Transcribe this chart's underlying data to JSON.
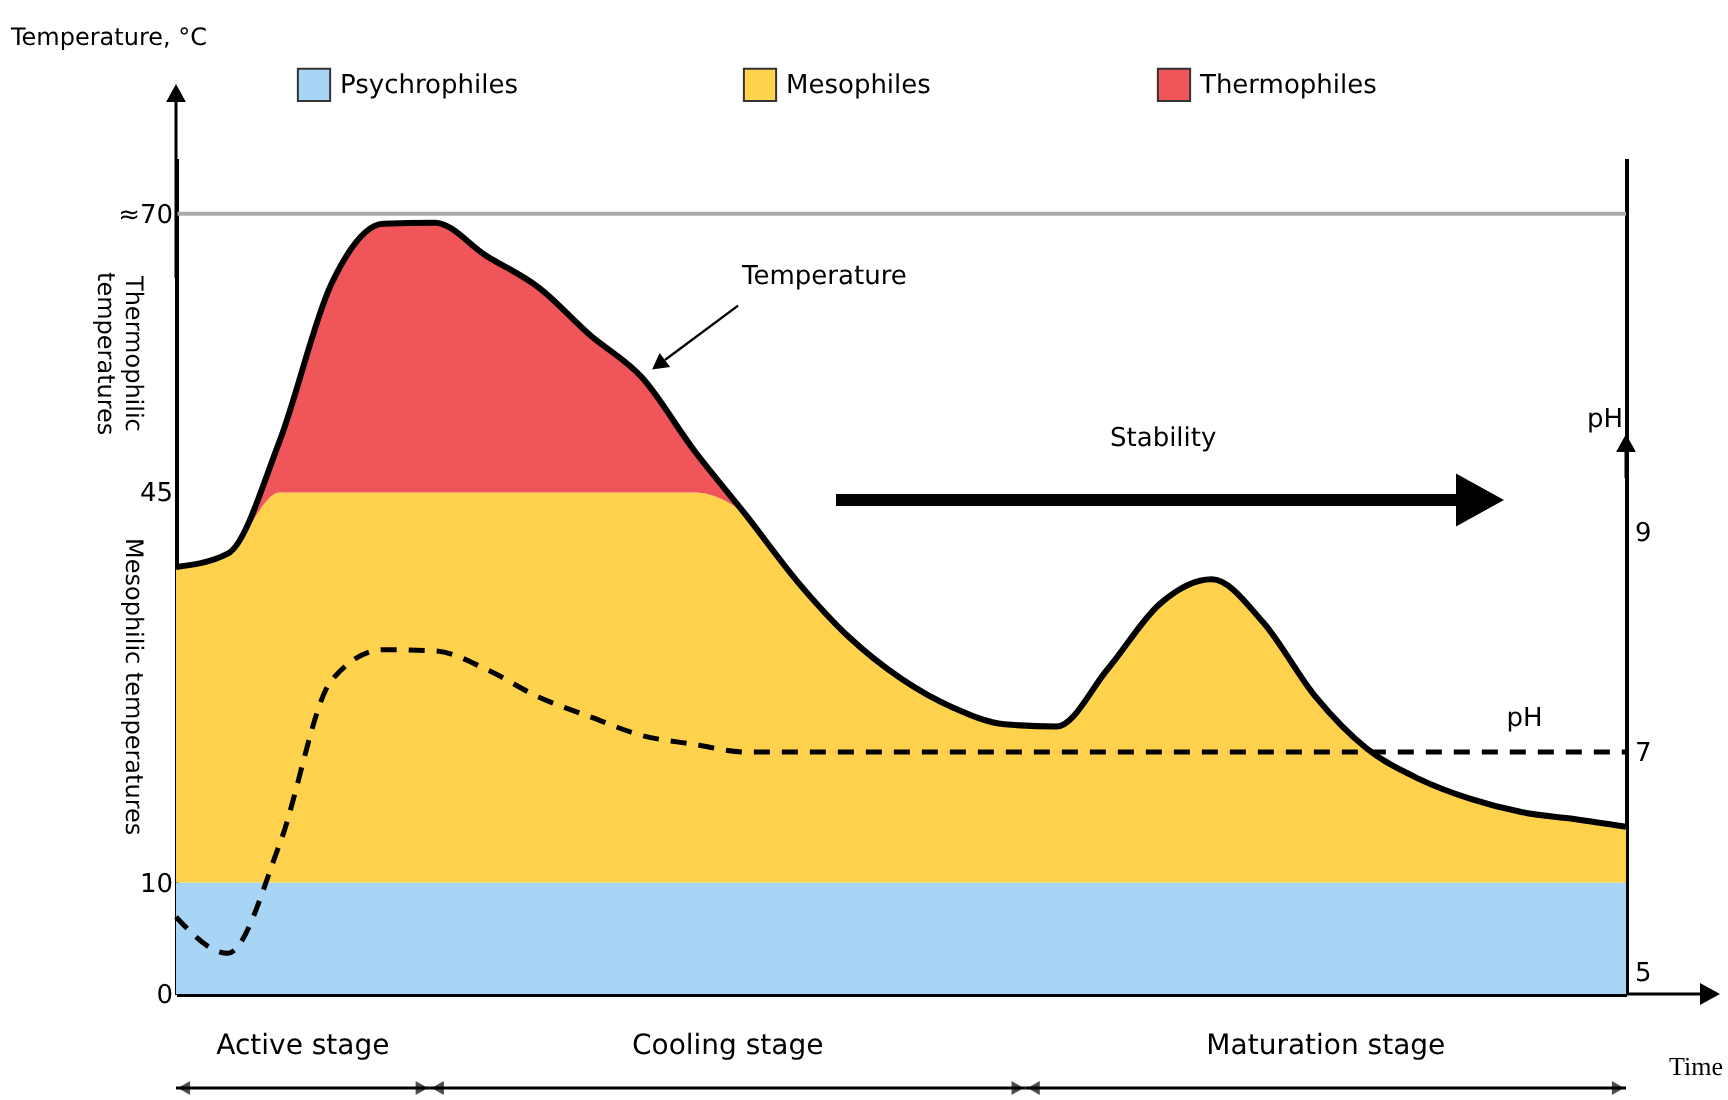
{
  "chart_data": {
    "type": "area",
    "stacked": true,
    "ylabel": "Temperature, °C",
    "xlabel": "Time",
    "y2label": "pH",
    "categories": [
      null,
      null,
      null,
      null,
      null,
      null,
      null,
      null,
      null,
      null,
      null,
      null,
      null,
      null,
      null,
      null,
      null,
      null,
      null,
      null,
      null,
      null,
      null,
      null,
      null,
      null,
      null,
      null,
      null
    ],
    "series": [
      {
        "name": "Psychrophiles",
        "color": "#a8d4f5",
        "values": [
          10,
          10,
          10,
          10,
          10,
          10,
          10,
          10,
          10,
          10,
          10,
          10,
          10,
          10,
          10,
          10,
          10,
          10,
          10,
          10,
          10,
          10,
          10,
          10,
          10,
          10,
          10,
          10,
          10
        ]
      },
      {
        "name": "Mesophiles",
        "color": "#ffd24d",
        "values": [
          28.3,
          29.5,
          35,
          35,
          35,
          35,
          35,
          35,
          35,
          35,
          35,
          33,
          27,
          22,
          18.3,
          15.7,
          14.2,
          14,
          19.2,
          25,
          27.2,
          23.3,
          16.7,
          12,
          9.3,
          7.5,
          6.3,
          5.7,
          5
        ]
      },
      {
        "name": "Thermophiles",
        "color": "#f0555a",
        "values": [
          0,
          0,
          4.6,
          18.7,
          24.1,
          24.2,
          21.2,
          18.4,
          14.1,
          10.3,
          3.8,
          0,
          0,
          0,
          0,
          0,
          0,
          0,
          0,
          0,
          0,
          0,
          0,
          0,
          0,
          0,
          0,
          0,
          0
        ]
      },
      {
        "name": "pH",
        "type": "line",
        "axis": "y2",
        "color": "#000000",
        "line_style": "dashed",
        "values": [
          5.5,
          5.17,
          6.16,
          7.65,
          7.93,
          7.92,
          7.75,
          7.5,
          7.32,
          7.15,
          7.07,
          7,
          7,
          7,
          7,
          7,
          7,
          7,
          7,
          7,
          7,
          7,
          7,
          7,
          7,
          7,
          7,
          7,
          7
        ]
      }
    ],
    "ylim": [
      0,
      75
    ],
    "yticks": [
      0,
      10,
      45,
      {
        "value": 70,
        "label": "≈70"
      }
    ],
    "y2lim": [
      4.8,
      12.4
    ],
    "y2ticks": [
      5,
      7,
      9
    ],
    "ref_lines": [
      {
        "axis": "y",
        "value": 70,
        "color": "#aaaaaa"
      }
    ],
    "annotations": [
      "Thermophilic temperatures",
      "Mesophilic temperatures",
      "Stability",
      "Active stage",
      "Cooling stage",
      "Maturation stage",
      "Temperature"
    ],
    "legend": "top",
    "grid": false,
    "marker": "none"
  }
}
